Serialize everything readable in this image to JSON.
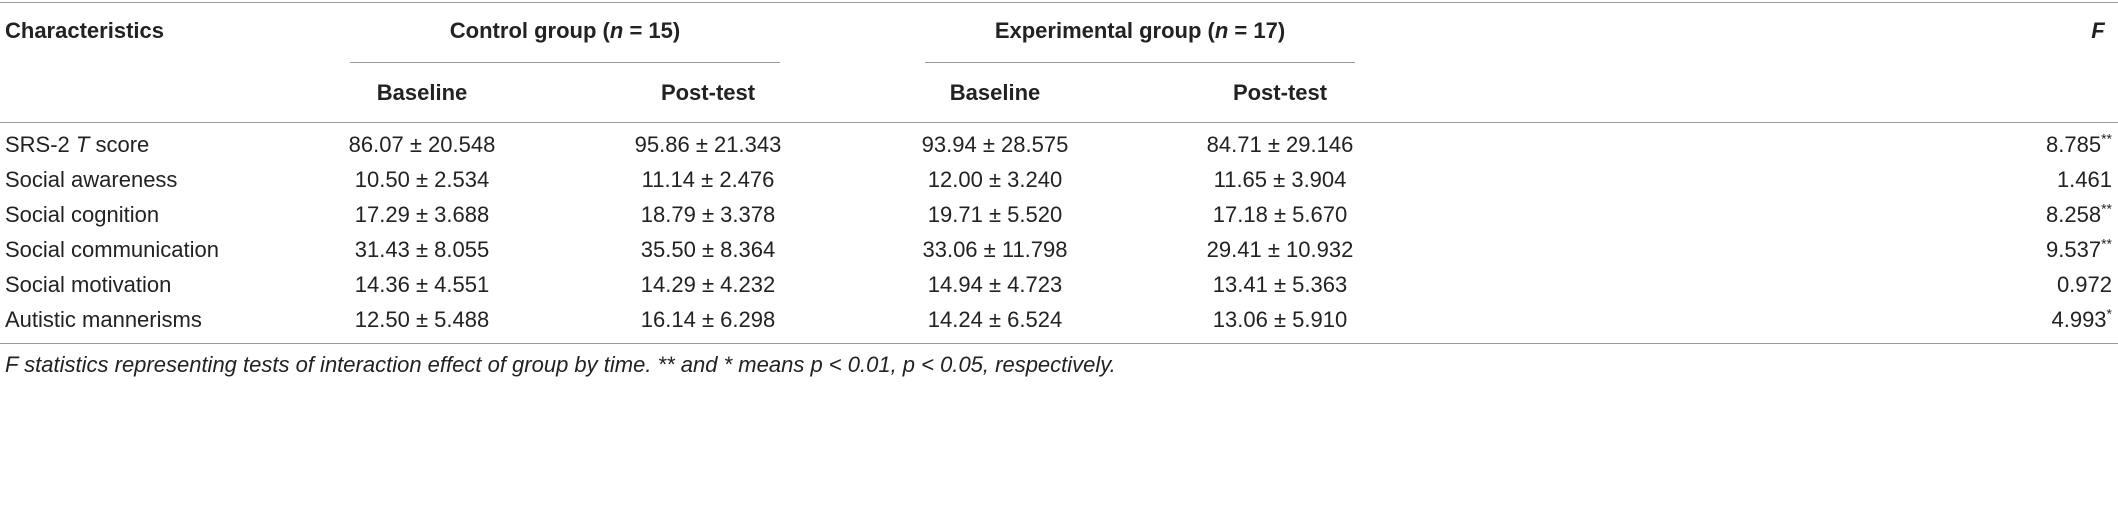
{
  "table": {
    "header": {
      "first": "Characteristics",
      "groups": [
        [
          "Control group (",
          "n",
          " = 15)"
        ],
        [
          "Experimental group (",
          "n",
          " = 17)"
        ]
      ],
      "last": "F",
      "sub": [
        "Baseline",
        "Post-test",
        "Baseline",
        "Post-test"
      ]
    },
    "rows": [
      {
        "label": [
          "SRS-2 ",
          "T",
          " score"
        ],
        "cells": [
          "86.07 ± 20.548",
          "95.86 ± 21.343",
          "93.94 ± 28.575",
          "84.71 ± 29.146"
        ],
        "F": {
          "value": "8.785",
          "sig": "**"
        }
      },
      {
        "label": "Social awareness",
        "cells": [
          "10.50 ± 2.534",
          "11.14 ± 2.476",
          "12.00 ± 3.240",
          "11.65 ± 3.904"
        ],
        "F": {
          "value": "1.461"
        }
      },
      {
        "label": "Social cognition",
        "cells": [
          "17.29 ± 3.688",
          "18.79 ± 3.378",
          "19.71 ± 5.520",
          "17.18 ± 5.670"
        ],
        "F": {
          "value": "8.258",
          "sig": "**"
        }
      },
      {
        "label": "Social communication",
        "cells": [
          "31.43 ± 8.055",
          "35.50 ± 8.364",
          "33.06 ± 11.798",
          "29.41 ± 10.932"
        ],
        "F": {
          "value": "9.537",
          "sig": "**"
        }
      },
      {
        "label": "Social motivation",
        "cells": [
          "14.36 ± 4.551",
          "14.29 ± 4.232",
          "14.94 ± 4.723",
          "13.41 ± 5.363"
        ],
        "F": {
          "value": "0.972"
        }
      },
      {
        "label": "Autistic mannerisms",
        "cells": [
          "12.50 ± 5.488",
          "16.14 ± 6.298",
          "14.24 ± 6.524",
          "13.06 ± 5.910"
        ],
        "F": {
          "value": "4.993",
          "sig": "*"
        }
      }
    ],
    "footnote": "F statistics representing tests of interaction effect of group by time. ** and * means p < 0.01, p < 0.05, respectively."
  }
}
